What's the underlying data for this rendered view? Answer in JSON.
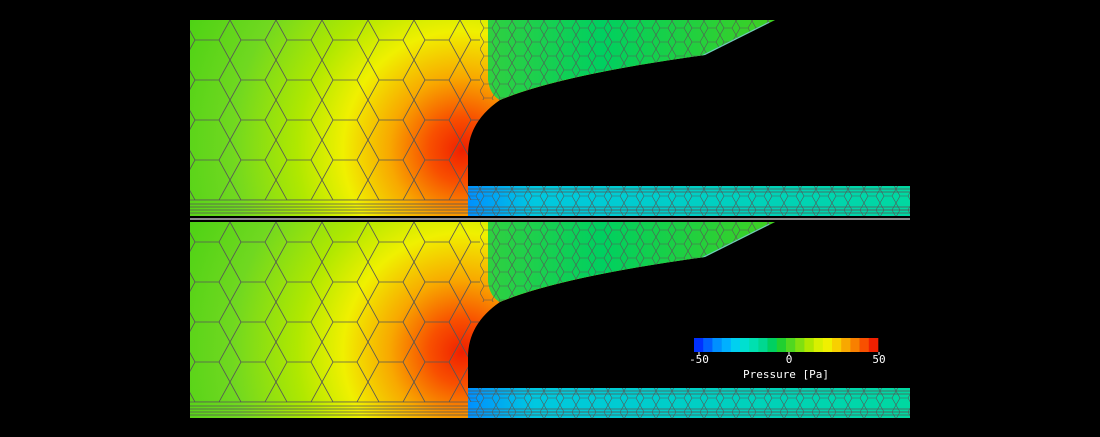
{
  "colorbar": {
    "label": "Pressure [Pa]",
    "lim": [
      -50,
      50
    ],
    "ticks": [
      -50,
      0,
      50
    ],
    "colors": [
      "#0030ff",
      "#0060ff",
      "#0090ff",
      "#00b0ff",
      "#00d0f0",
      "#00e0d0",
      "#00e0b0",
      "#00d890",
      "#00d060",
      "#20d030",
      "#50d820",
      "#80e010",
      "#b0e800",
      "#d8f000",
      "#f0f000",
      "#f8d000",
      "#f8a800",
      "#f88000",
      "#f85000",
      "#f02000"
    ]
  }
}
